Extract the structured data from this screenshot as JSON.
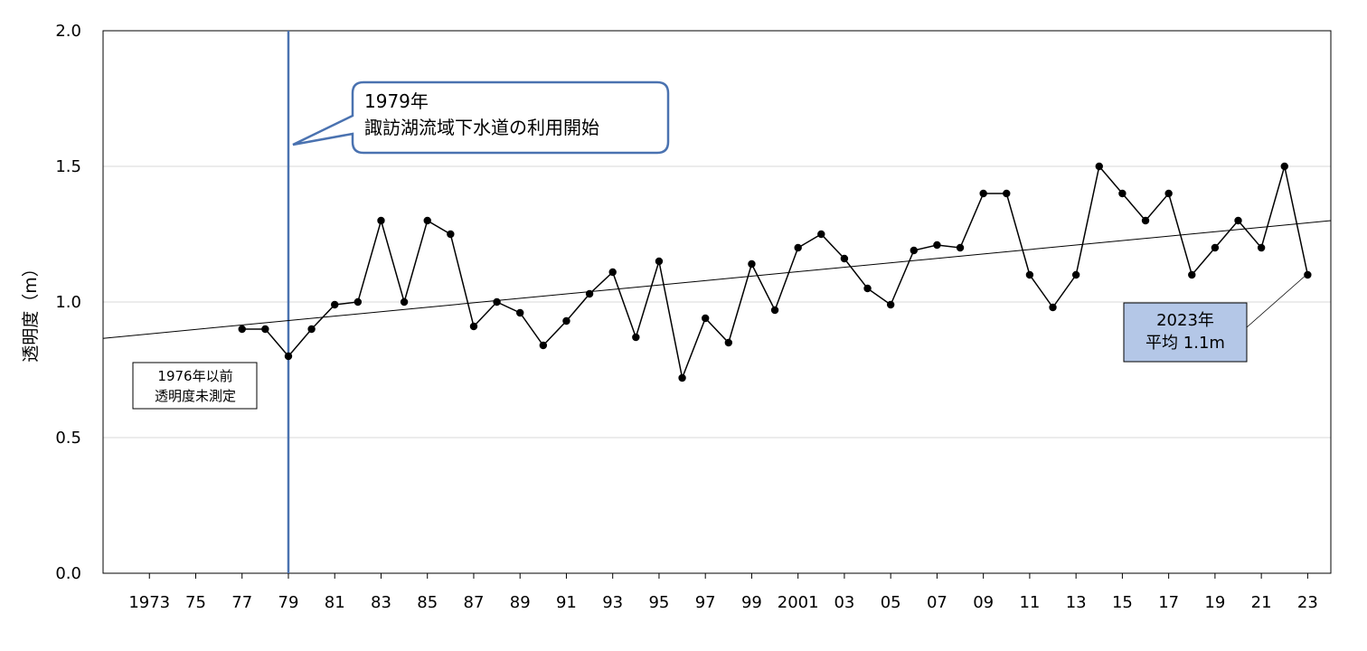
{
  "chart_data": {
    "type": "line",
    "ylabel": "透明度（m）",
    "ylim": [
      0.0,
      2.0
    ],
    "yticks": [
      "0.0",
      "0.5",
      "1.0",
      "1.5",
      "2.0"
    ],
    "xlim": [
      1971,
      2024
    ],
    "xtick_labels": [
      "1973",
      "75",
      "77",
      "79",
      "81",
      "83",
      "85",
      "87",
      "89",
      "91",
      "93",
      "95",
      "97",
      "99",
      "2001",
      "03",
      "05",
      "07",
      "09",
      "11",
      "13",
      "15",
      "17",
      "19",
      "21",
      "23"
    ],
    "grid": true,
    "series": [
      {
        "x": [
          1977,
          1978,
          1979,
          1980,
          1981,
          1982,
          1983,
          1984,
          1985,
          1986,
          1987,
          1988,
          1989,
          1990,
          1991,
          1992,
          1993,
          1994,
          1995,
          1996,
          1997,
          1998,
          1999,
          2000,
          2001,
          2002,
          2003,
          2004,
          2005,
          2006,
          2007,
          2008,
          2009,
          2010,
          2011,
          2012,
          2013,
          2014,
          2015,
          2016,
          2017,
          2018,
          2019,
          2020,
          2021,
          2022,
          2023
        ],
        "values": [
          0.9,
          0.9,
          0.8,
          0.9,
          0.99,
          1.0,
          1.3,
          1.0,
          1.3,
          1.25,
          0.91,
          1.0,
          0.96,
          0.84,
          0.93,
          1.03,
          1.11,
          0.87,
          1.15,
          0.72,
          0.94,
          0.85,
          1.14,
          0.97,
          1.2,
          1.25,
          1.16,
          1.05,
          0.99,
          1.19,
          1.21,
          1.2,
          1.4,
          1.4,
          1.1,
          0.98,
          1.1,
          1.5,
          1.4,
          1.3,
          1.4,
          1.1,
          1.2,
          1.3,
          1.2,
          1.5,
          1.1
        ],
        "color": "#000000"
      }
    ],
    "trendline": {
      "x": [
        1971,
        2024
      ],
      "y": [
        0.866,
        1.3
      ],
      "color": "#000000"
    },
    "vline": {
      "x": 1979,
      "color": "#4a72b0"
    },
    "callout": {
      "line1": "1979年",
      "line2": "諏訪湖流域下水道の利用開始",
      "border_color": "#4a72b0"
    },
    "note": {
      "line1": "1976年以前",
      "line2": "透明度未測定"
    },
    "latest": {
      "line1": "2023年",
      "line2": "平均 1.1m",
      "fill_color": "#b4c7e7"
    }
  }
}
